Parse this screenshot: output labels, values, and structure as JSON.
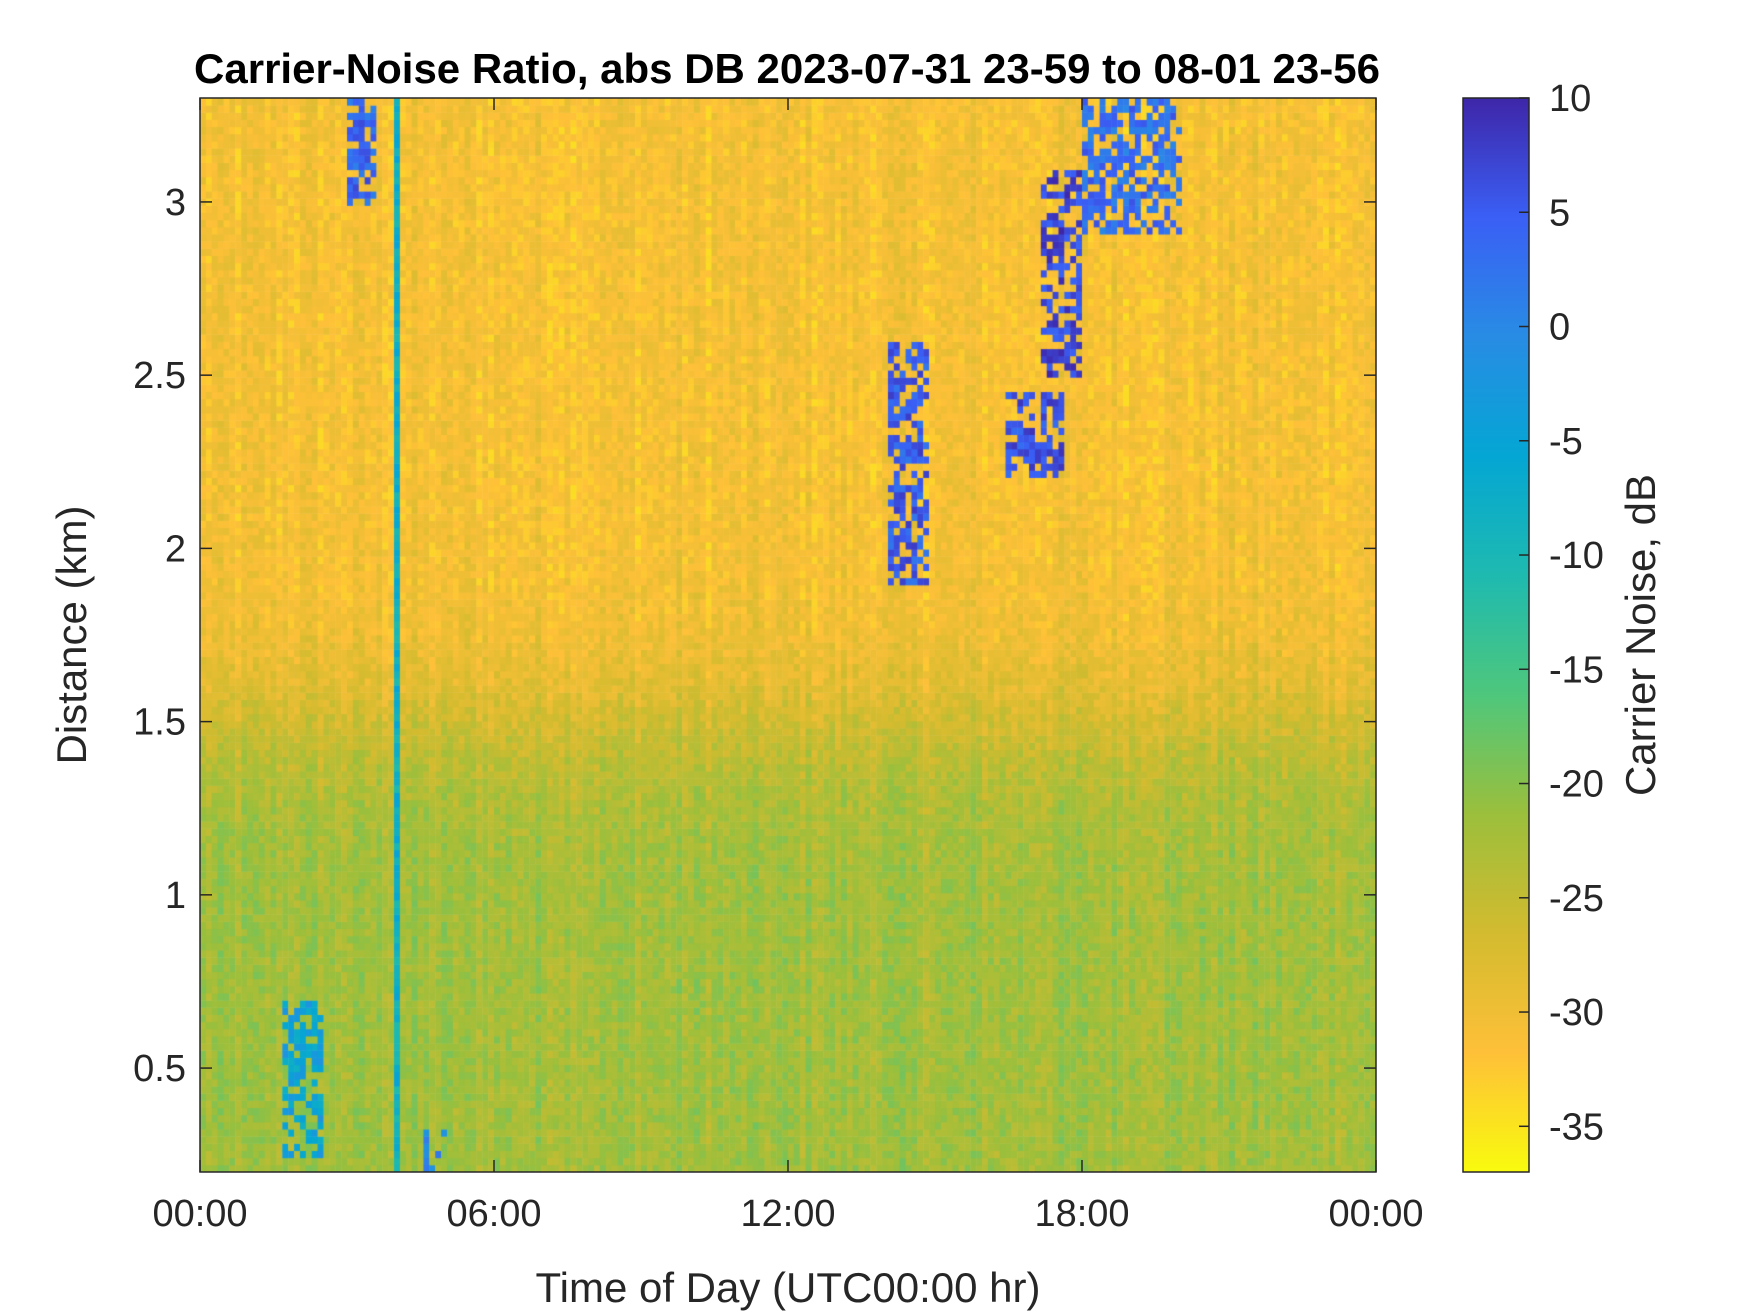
{
  "chart_data": {
    "type": "heatmap",
    "title": "Carrier-Noise Ratio, abs DB 2023-07-31 23-59 to 08-01 23-56",
    "xlabel": "Time of Day (UTC00:00 hr)",
    "ylabel": "Distance (km)",
    "colorbar_label": "Carrier Noise, dB",
    "xlim": [
      0,
      24
    ],
    "ylim": [
      0.2,
      3.3
    ],
    "clim": [
      -37,
      10
    ],
    "x_ticks": [
      0,
      6,
      12,
      18,
      24
    ],
    "x_tick_labels": [
      "00:00",
      "06:00",
      "12:00",
      "18:00",
      "00:00"
    ],
    "y_ticks": [
      0.5,
      1,
      1.5,
      2,
      2.5,
      3
    ],
    "y_tick_labels": [
      "0.5",
      "1",
      "1.5",
      "2",
      "2.5",
      "3"
    ],
    "colorbar_ticks": [
      10,
      5,
      0,
      -5,
      -10,
      -15,
      -20,
      -25,
      -30,
      -35
    ],
    "colorbar_tick_labels": [
      "10",
      "5",
      "0",
      "-5",
      "-10",
      "-15",
      "-20",
      "-25",
      "-30",
      "-35"
    ],
    "colormap": "parula",
    "colormap_stops": [
      "#f9fb0e",
      "#fec038",
      "#d3bb2f",
      "#9bbf3c",
      "#4ec77c",
      "#1ebab0",
      "#04a6d4",
      "#288ce4",
      "#3a5ff5",
      "#3e26a8"
    ],
    "background_cnr_db": -31,
    "low_altitude_band": {
      "time_range_hr": [
        0,
        24
      ],
      "distance_range_km": [
        0.2,
        1.5
      ],
      "cnr_db": -22
    },
    "features": [
      {
        "name": "vertical streak",
        "time_hr": 4.0,
        "distance_range_km": [
          0.2,
          3.3
        ],
        "cnr_db": -8
      },
      {
        "name": "vertical streak",
        "time_hr": 4.2,
        "distance_range_km": [
          0.2,
          3.3
        ],
        "cnr_db": -8
      },
      {
        "name": "cloud",
        "time_range_hr": [
          3.0,
          3.6
        ],
        "distance_range_km": [
          3.0,
          3.3
        ],
        "cnr_db": 4
      },
      {
        "name": "cloud",
        "time_range_hr": [
          1.7,
          2.5
        ],
        "distance_range_km": [
          0.25,
          0.7
        ],
        "cnr_db": -5
      },
      {
        "name": "cloud",
        "time_range_hr": [
          4.6,
          5.0
        ],
        "distance_range_km": [
          0.2,
          0.35
        ],
        "cnr_db": 0
      },
      {
        "name": "cloud",
        "time_range_hr": [
          14.0,
          14.9
        ],
        "distance_range_km": [
          1.9,
          2.6
        ],
        "cnr_db": 5
      },
      {
        "name": "cloud",
        "time_range_hr": [
          16.5,
          17.7
        ],
        "distance_range_km": [
          2.2,
          2.45
        ],
        "cnr_db": 6
      },
      {
        "name": "cloud",
        "time_range_hr": [
          17.2,
          18.0
        ],
        "distance_range_km": [
          2.5,
          3.1
        ],
        "cnr_db": 7
      },
      {
        "name": "cloud",
        "time_range_hr": [
          18.0,
          20.0
        ],
        "distance_range_km": [
          2.9,
          3.3
        ],
        "cnr_db": 3
      }
    ]
  }
}
